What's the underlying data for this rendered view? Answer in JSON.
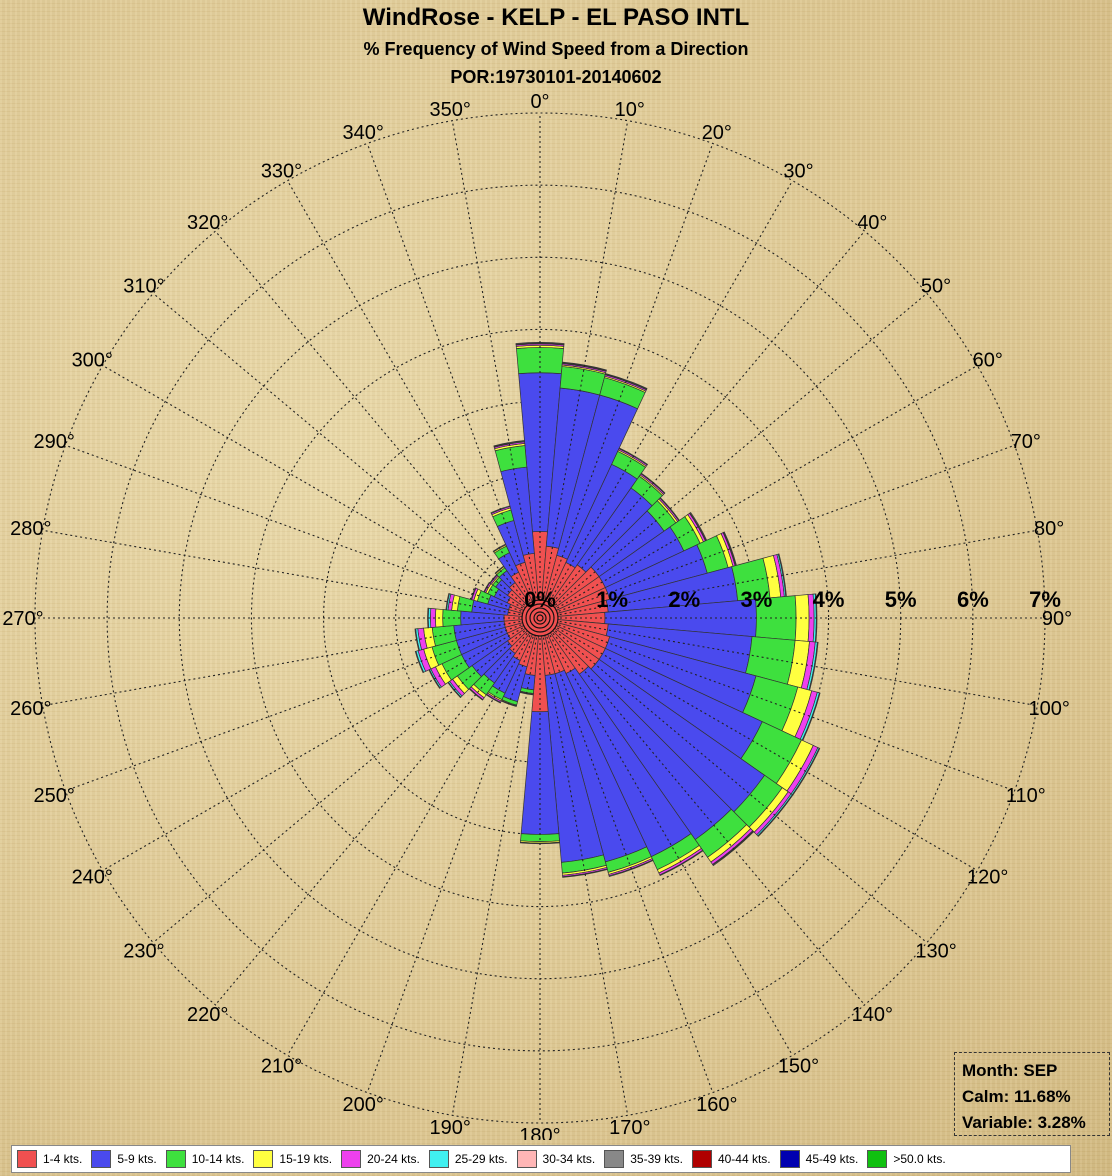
{
  "chart_data": {
    "type": "windrose",
    "title": "WindRose - KELP - EL PASO INTL",
    "subtitle": "% Frequency of Wind Speed from a Direction",
    "period": "POR:19730101-20140602",
    "radial_ticks": [
      "0%",
      "1%",
      "2%",
      "3%",
      "4%",
      "5%",
      "6%",
      "7%"
    ],
    "radial_max": 7,
    "angle_labels": [
      "0°",
      "10°",
      "20°",
      "30°",
      "40°",
      "50°",
      "60°",
      "70°",
      "80°",
      "90°",
      "100°",
      "110°",
      "120°",
      "130°",
      "140°",
      "150°",
      "160°",
      "170°",
      "180°",
      "190°",
      "200°",
      "210°",
      "220°",
      "230°",
      "240°",
      "250°",
      "260°",
      "270°",
      "280°",
      "290°",
      "300°",
      "310°",
      "320°",
      "330°",
      "340°",
      "350°"
    ],
    "directions": [
      0,
      10,
      20,
      30,
      40,
      50,
      60,
      70,
      80,
      90,
      100,
      110,
      120,
      130,
      140,
      150,
      160,
      170,
      180,
      190,
      200,
      210,
      220,
      230,
      240,
      250,
      260,
      270,
      280,
      290,
      300,
      310,
      320,
      330,
      340,
      350
    ],
    "series": [
      {
        "name": "1-4 kts.",
        "color": "#f05050",
        "values": [
          1.2,
          1.0,
          0.9,
          0.85,
          0.9,
          1.0,
          1.0,
          1.0,
          0.95,
          0.9,
          0.95,
          1.0,
          1.0,
          1.0,
          0.95,
          0.85,
          0.8,
          0.8,
          1.3,
          0.8,
          0.7,
          0.65,
          0.6,
          0.55,
          0.5,
          0.5,
          0.5,
          0.5,
          0.45,
          0.45,
          0.5,
          0.55,
          0.6,
          0.7,
          0.8,
          0.9
        ]
      },
      {
        "name": "5-9 kts.",
        "color": "#4a4aee",
        "values": [
          2.2,
          2.2,
          2.3,
          1.5,
          1.3,
          1.1,
          1.2,
          1.4,
          1.8,
          2.1,
          2.0,
          2.1,
          2.4,
          2.8,
          2.8,
          2.8,
          2.7,
          2.6,
          1.7,
          0.2,
          0.5,
          0.5,
          0.5,
          0.6,
          0.7,
          0.7,
          0.7,
          0.6,
          0.5,
          0.3,
          0.2,
          0.2,
          0.2,
          0.3,
          0.6,
          1.2
        ]
      },
      {
        "name": "10-14 kts.",
        "color": "#3ee03e",
        "values": [
          0.35,
          0.3,
          0.25,
          0.2,
          0.2,
          0.2,
          0.25,
          0.3,
          0.45,
          0.55,
          0.6,
          0.6,
          0.6,
          0.3,
          0.3,
          0.2,
          0.15,
          0.15,
          0.1,
          0.05,
          0.05,
          0.1,
          0.2,
          0.25,
          0.3,
          0.35,
          0.3,
          0.25,
          0.2,
          0.15,
          0.1,
          0.05,
          0.05,
          0.1,
          0.15,
          0.3
        ]
      },
      {
        "name": "15-19 kts.",
        "color": "#ffff40",
        "values": [
          0.03,
          0.02,
          0.02,
          0.02,
          0.02,
          0.03,
          0.05,
          0.07,
          0.15,
          0.18,
          0.2,
          0.2,
          0.18,
          0.1,
          0.08,
          0.05,
          0.03,
          0.03,
          0.02,
          0.01,
          0.01,
          0.02,
          0.05,
          0.08,
          0.1,
          0.12,
          0.12,
          0.1,
          0.08,
          0.05,
          0.03,
          0.02,
          0.02,
          0.02,
          0.03,
          0.03
        ]
      },
      {
        "name": "20-24 kts.",
        "color": "#ee40ee",
        "values": [
          0.02,
          0.02,
          0.02,
          0.02,
          0.02,
          0.02,
          0.03,
          0.03,
          0.05,
          0.07,
          0.08,
          0.08,
          0.07,
          0.05,
          0.04,
          0.03,
          0.02,
          0.02,
          0.01,
          0.01,
          0.01,
          0.02,
          0.03,
          0.05,
          0.07,
          0.08,
          0.08,
          0.07,
          0.05,
          0.03,
          0.02,
          0.02,
          0.01,
          0.01,
          0.02,
          0.02
        ]
      },
      {
        "name": "25-29 kts.",
        "color": "#40f0f0",
        "values": [
          0.01,
          0.01,
          0.01,
          0.01,
          0.01,
          0.01,
          0.01,
          0.01,
          0.02,
          0.03,
          0.03,
          0.03,
          0.02,
          0.02,
          0.01,
          0.01,
          0.01,
          0.01,
          0.0,
          0.0,
          0.0,
          0.01,
          0.01,
          0.02,
          0.02,
          0.03,
          0.03,
          0.03,
          0.02,
          0.01,
          0.01,
          0.01,
          0.0,
          0.0,
          0.01,
          0.01
        ]
      },
      {
        "name": "30-34 kts.",
        "color": "#ffb6b6",
        "values": [
          0.01,
          0.01,
          0.01,
          0.0,
          0.0,
          0.0,
          0.01,
          0.01,
          0.01,
          0.01,
          0.01,
          0.01,
          0.01,
          0.01,
          0.01,
          0.0,
          0.0,
          0.0,
          0.0,
          0.0,
          0.0,
          0.0,
          0.0,
          0.01,
          0.01,
          0.01,
          0.01,
          0.01,
          0.01,
          0.0,
          0.0,
          0.0,
          0.0,
          0.0,
          0.0,
          0.01
        ]
      },
      {
        "name": "35-39 kts.",
        "color": "#888888",
        "values": [
          0,
          0,
          0,
          0,
          0,
          0,
          0,
          0,
          0,
          0,
          0,
          0,
          0,
          0,
          0,
          0,
          0,
          0,
          0,
          0,
          0,
          0,
          0,
          0,
          0,
          0,
          0,
          0,
          0,
          0,
          0,
          0,
          0,
          0,
          0,
          0
        ]
      },
      {
        "name": "40-44 kts.",
        "color": "#b00000",
        "values": [
          0,
          0,
          0,
          0,
          0,
          0,
          0,
          0,
          0,
          0,
          0,
          0,
          0,
          0,
          0,
          0,
          0,
          0,
          0,
          0,
          0,
          0,
          0,
          0,
          0,
          0,
          0,
          0,
          0,
          0,
          0,
          0,
          0,
          0,
          0,
          0
        ]
      },
      {
        "name": "45-49 kts.",
        "color": "#0000b0",
        "values": [
          0,
          0,
          0,
          0,
          0,
          0,
          0,
          0,
          0,
          0,
          0,
          0,
          0,
          0,
          0,
          0,
          0,
          0,
          0,
          0,
          0,
          0,
          0,
          0,
          0,
          0,
          0,
          0,
          0,
          0,
          0,
          0,
          0,
          0,
          0,
          0
        ]
      },
      {
        "name": ">50.0 kts.",
        "color": "#10c010",
        "values": [
          0,
          0,
          0,
          0,
          0,
          0,
          0,
          0,
          0,
          0,
          0,
          0,
          0,
          0,
          0,
          0,
          0,
          0,
          0,
          0,
          0,
          0,
          0,
          0,
          0,
          0,
          0,
          0,
          0,
          0,
          0,
          0,
          0,
          0,
          0,
          0
        ]
      }
    ],
    "grid": true,
    "legend_position": "bottom"
  },
  "info": {
    "month": "Month: SEP",
    "calm": "Calm: 11.68%",
    "variable": "Variable: 3.28%"
  }
}
